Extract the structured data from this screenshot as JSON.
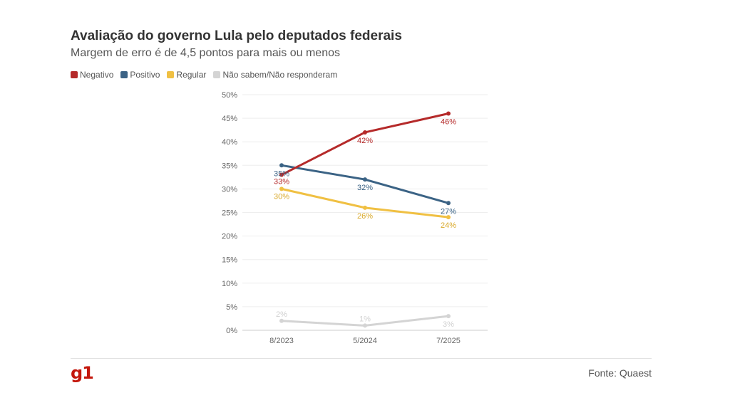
{
  "header": {
    "title": "Avaliação do governo Lula pelo deputados federais",
    "subtitle": "Margem de erro é de 4,5 pontos para mais ou menos"
  },
  "legend": [
    {
      "label": "Negativo",
      "color": "#b52a2a"
    },
    {
      "label": "Positivo",
      "color": "#3b6385"
    },
    {
      "label": "Regular",
      "color": "#f0c043"
    },
    {
      "label": "Não sabem/Não responderam",
      "color": "#d4d4d4"
    }
  ],
  "chart_data": {
    "type": "line",
    "x": [
      "8/2023",
      "5/2024",
      "7/2025"
    ],
    "ylim": [
      0,
      50
    ],
    "yticks": [
      "0%",
      "5%",
      "10%",
      "15%",
      "20%",
      "25%",
      "30%",
      "35%",
      "40%",
      "45%",
      "50%"
    ],
    "grid": true,
    "legend_position": "top-left",
    "series": [
      {
        "name": "Negativo",
        "color": "#b52a2a",
        "values": [
          33,
          42,
          46
        ],
        "labels": [
          "33%",
          "42%",
          "46%"
        ]
      },
      {
        "name": "Positivo",
        "color": "#3b6385",
        "values": [
          35,
          32,
          27
        ],
        "labels": [
          "35%",
          "32%",
          "27%"
        ]
      },
      {
        "name": "Regular",
        "color": "#f0c043",
        "values": [
          30,
          26,
          24
        ],
        "labels": [
          "30%",
          "26%",
          "24%"
        ]
      },
      {
        "name": "Não sabem/Não responderam",
        "color": "#d4d4d4",
        "values": [
          2,
          1,
          3
        ],
        "labels": [
          "2%",
          "1%",
          "3%"
        ]
      }
    ]
  },
  "footer": {
    "logo": "g1",
    "source": "Fonte: Quaest"
  }
}
